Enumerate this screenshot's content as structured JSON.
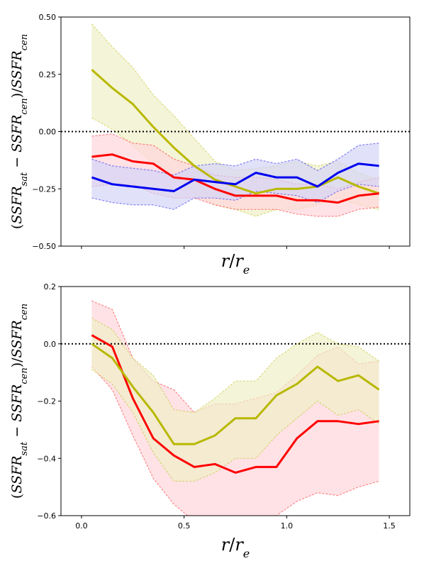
{
  "chart_data": [
    {
      "type": "line",
      "xlabel": "r/r_e",
      "ylabel": "(SSFR_sat − SSFR_cen)/SSFR_cen",
      "xlim": [
        -0.1,
        1.6
      ],
      "ylim": [
        -0.5,
        0.5
      ],
      "yticks": [
        -0.5,
        -0.25,
        0.0,
        0.25,
        0.5
      ],
      "ytick_labels": [
        "−0.50",
        "−0.25",
        "0.00",
        "0.25",
        "0.50"
      ],
      "xticks": [
        0.0,
        0.5,
        1.0,
        1.5
      ],
      "xtick_labels": [],
      "reference_line": {
        "y": 0.0,
        "style": "dotted",
        "color": "#000000"
      },
      "x": [
        0.05,
        0.15,
        0.25,
        0.35,
        0.45,
        0.55,
        0.65,
        0.75,
        0.85,
        0.95,
        1.05,
        1.15,
        1.25,
        1.35,
        1.45
      ],
      "series": [
        {
          "color": "#b8b800",
          "fill": "#f0f0c8",
          "values": [
            0.27,
            0.19,
            0.12,
            0.02,
            -0.07,
            -0.15,
            -0.21,
            -0.24,
            -0.27,
            -0.25,
            -0.25,
            -0.24,
            -0.2,
            -0.24,
            -0.27
          ],
          "upper": [
            0.47,
            0.37,
            0.28,
            0.16,
            0.07,
            -0.03,
            -0.13,
            -0.17,
            -0.16,
            -0.15,
            -0.13,
            -0.15,
            -0.13,
            -0.18,
            -0.21
          ],
          "lower": [
            0.06,
            0.01,
            -0.06,
            -0.14,
            -0.2,
            -0.27,
            -0.32,
            -0.34,
            -0.37,
            -0.34,
            -0.34,
            -0.32,
            -0.29,
            -0.32,
            -0.34
          ]
        },
        {
          "color": "#ff0000",
          "fill": "#ffd6dc",
          "values": [
            -0.11,
            -0.1,
            -0.13,
            -0.14,
            -0.2,
            -0.21,
            -0.25,
            -0.28,
            -0.28,
            -0.28,
            -0.3,
            -0.3,
            -0.31,
            -0.28,
            -0.27
          ],
          "upper": [
            -0.02,
            -0.01,
            -0.05,
            -0.06,
            -0.12,
            -0.15,
            -0.19,
            -0.2,
            -0.2,
            -0.21,
            -0.23,
            -0.23,
            -0.25,
            -0.22,
            -0.2
          ],
          "lower": [
            -0.24,
            -0.23,
            -0.23,
            -0.27,
            -0.29,
            -0.29,
            -0.32,
            -0.34,
            -0.34,
            -0.34,
            -0.36,
            -0.37,
            -0.37,
            -0.34,
            -0.33
          ]
        },
        {
          "color": "#0000ee",
          "fill": "#d4d4f8",
          "values": [
            -0.2,
            -0.23,
            -0.24,
            -0.25,
            -0.26,
            -0.21,
            -0.22,
            -0.23,
            -0.18,
            -0.2,
            -0.2,
            -0.24,
            -0.18,
            -0.14,
            -0.15
          ],
          "upper": [
            -0.12,
            -0.15,
            -0.16,
            -0.17,
            -0.19,
            -0.15,
            -0.14,
            -0.15,
            -0.12,
            -0.14,
            -0.12,
            -0.17,
            -0.12,
            -0.06,
            -0.05
          ],
          "lower": [
            -0.29,
            -0.31,
            -0.32,
            -0.32,
            -0.34,
            -0.29,
            -0.29,
            -0.3,
            -0.26,
            -0.27,
            -0.28,
            -0.31,
            -0.26,
            -0.23,
            -0.24
          ]
        }
      ]
    },
    {
      "type": "line",
      "xlabel": "r/r_e",
      "ylabel": "(SSFR_sat − SSFR_cen)/SSFR_cen",
      "xlim": [
        -0.1,
        1.6
      ],
      "ylim": [
        -0.6,
        0.2
      ],
      "yticks": [
        -0.6,
        -0.4,
        -0.2,
        0.0,
        0.2
      ],
      "ytick_labels": [
        "−0.6",
        "−0.4",
        "−0.2",
        "0.0",
        "0.2"
      ],
      "xticks": [
        0.0,
        0.5,
        1.0,
        1.5
      ],
      "xtick_labels": [
        "0.0",
        "0.5",
        "1.0",
        "1.5"
      ],
      "reference_line": {
        "y": 0.0,
        "style": "dotted",
        "color": "#000000"
      },
      "x": [
        0.05,
        0.15,
        0.25,
        0.35,
        0.45,
        0.55,
        0.65,
        0.75,
        0.85,
        0.95,
        1.05,
        1.15,
        1.25,
        1.35,
        1.45
      ],
      "series": [
        {
          "color": "#ff0000",
          "fill": "#ffd6dc",
          "values": [
            0.03,
            -0.01,
            -0.19,
            -0.33,
            -0.39,
            -0.43,
            -0.42,
            -0.45,
            -0.43,
            -0.43,
            -0.33,
            -0.27,
            -0.27,
            -0.28,
            -0.27
          ],
          "upper": [
            0.15,
            0.12,
            -0.05,
            -0.13,
            -0.16,
            -0.24,
            -0.21,
            -0.21,
            -0.19,
            -0.17,
            -0.11,
            -0.04,
            -0.01,
            -0.07,
            -0.06
          ],
          "lower": [
            -0.08,
            -0.16,
            -0.32,
            -0.47,
            -0.56,
            -0.62,
            -0.62,
            -0.64,
            -0.64,
            -0.6,
            -0.55,
            -0.52,
            -0.53,
            -0.5,
            -0.48
          ]
        },
        {
          "color": "#b8b800",
          "fill": "#f0f0c8",
          "values": [
            0.0,
            -0.05,
            -0.15,
            -0.24,
            -0.35,
            -0.35,
            -0.32,
            -0.26,
            -0.26,
            -0.18,
            -0.14,
            -0.08,
            -0.13,
            -0.11,
            -0.16
          ],
          "upper": [
            0.09,
            0.05,
            -0.05,
            -0.11,
            -0.23,
            -0.24,
            -0.19,
            -0.13,
            -0.13,
            -0.05,
            0.0,
            0.04,
            0.0,
            -0.01,
            -0.06
          ],
          "lower": [
            -0.09,
            -0.14,
            -0.24,
            -0.38,
            -0.48,
            -0.48,
            -0.45,
            -0.4,
            -0.4,
            -0.32,
            -0.26,
            -0.2,
            -0.25,
            -0.23,
            -0.28
          ]
        }
      ]
    }
  ]
}
